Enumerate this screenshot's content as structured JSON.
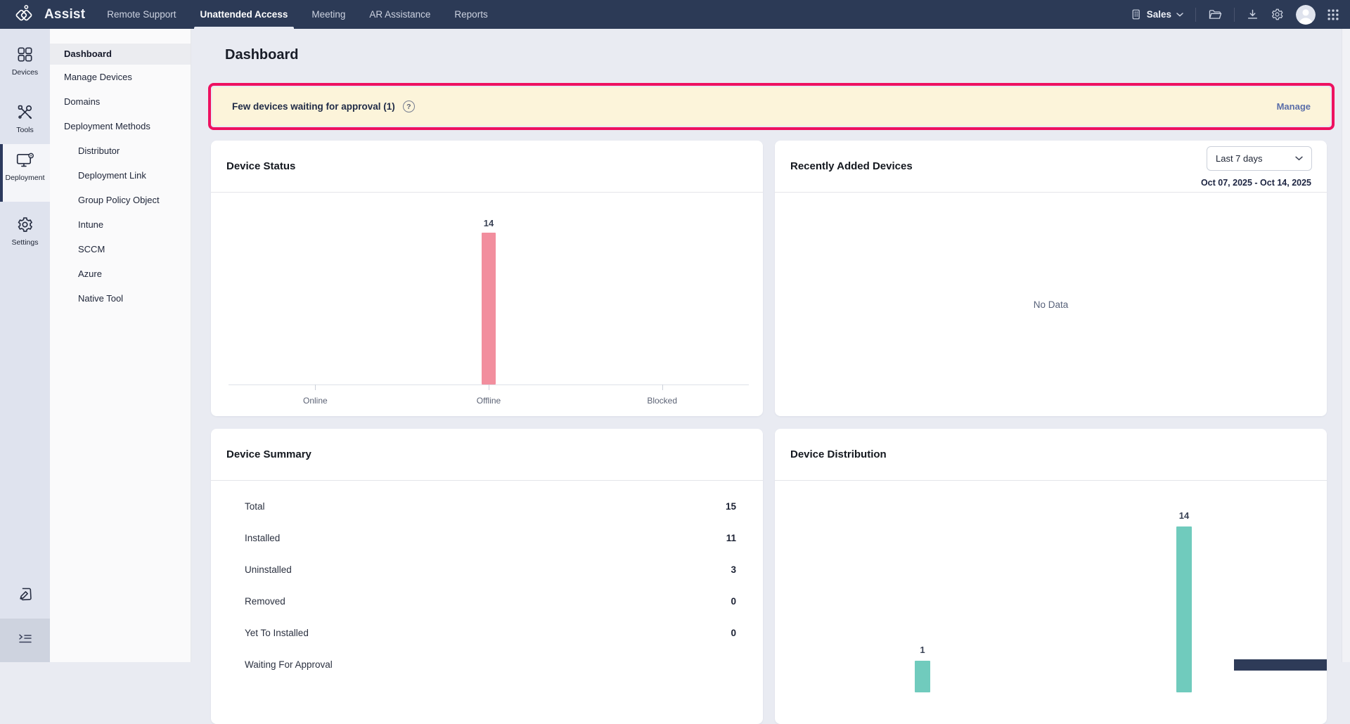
{
  "topnav": {
    "brand": "Assist",
    "tabs": [
      {
        "label": "Remote Support",
        "active": false
      },
      {
        "label": "Unattended Access",
        "active": true
      },
      {
        "label": "Meeting",
        "active": false
      },
      {
        "label": "AR Assistance",
        "active": false
      },
      {
        "label": "Reports",
        "active": false
      }
    ],
    "org": {
      "label": "Sales",
      "icon": "department-icon"
    },
    "right_icons": [
      "folder-icon",
      "download-icon",
      "gear-icon",
      "avatar",
      "apps-grid-icon"
    ]
  },
  "rail": {
    "items": [
      {
        "label": "Devices",
        "icon": "devices-grid-icon",
        "active": false
      },
      {
        "label": "Tools",
        "icon": "tools-icon",
        "active": false
      },
      {
        "label": "Deployment",
        "icon": "deployment-monitor-icon",
        "active": true
      },
      {
        "label": "Settings",
        "icon": "settings-gear-icon",
        "active": false
      }
    ],
    "bottom_icons": [
      "feedback-note-icon",
      "collapse-panel-icon"
    ]
  },
  "sidebar": {
    "items": [
      {
        "label": "Dashboard",
        "active": true,
        "indent": false
      },
      {
        "label": "Manage Devices",
        "active": false,
        "indent": false
      },
      {
        "label": "Domains",
        "active": false,
        "indent": false
      },
      {
        "label": "Deployment Methods",
        "active": false,
        "indent": false
      },
      {
        "label": "Distributor",
        "active": false,
        "indent": true
      },
      {
        "label": "Deployment Link",
        "active": false,
        "indent": true
      },
      {
        "label": "Group Policy Object",
        "active": false,
        "indent": true
      },
      {
        "label": "Intune",
        "active": false,
        "indent": true
      },
      {
        "label": "SCCM",
        "active": false,
        "indent": true
      },
      {
        "label": "Azure",
        "active": false,
        "indent": true
      },
      {
        "label": "Native Tool",
        "active": false,
        "indent": true
      }
    ]
  },
  "page": {
    "title": "Dashboard"
  },
  "banner": {
    "text": "Few devices waiting for approval (1)",
    "help_icon": "help-circle-icon",
    "action_label": "Manage",
    "bg_color": "#fcf4da",
    "highlight_border_color": "#ee1160"
  },
  "device_status": {
    "title": "Device Status"
  },
  "recently_added": {
    "title": "Recently Added Devices",
    "range_selector": "Last 7 days",
    "date_range": "Oct 07, 2025 - Oct 14, 2025",
    "empty_text": "No Data"
  },
  "device_summary": {
    "title": "Device Summary",
    "rows": [
      {
        "label": "Total",
        "value": "15"
      },
      {
        "label": "Installed",
        "value": "11"
      },
      {
        "label": "Uninstalled",
        "value": "3"
      },
      {
        "label": "Removed",
        "value": "0"
      },
      {
        "label": "Yet To Installed",
        "value": "0"
      },
      {
        "label": "Waiting For Approval",
        "value": "",
        "clipped": true
      }
    ]
  },
  "device_distribution": {
    "title": "Device Distribution"
  },
  "chart_data": [
    {
      "id": "device_status_chart",
      "type": "bar",
      "title": "Device Status",
      "categories": [
        "Online",
        "Offline",
        "Blocked"
      ],
      "values": [
        0,
        14,
        0
      ],
      "bar_color": "#f28e9e",
      "ylim": [
        0,
        14
      ],
      "grid": false,
      "data_labels": "shown only for non-zero bars",
      "legend": "none"
    },
    {
      "id": "device_distribution_chart",
      "type": "bar",
      "title": "Device Distribution",
      "categories": [
        "",
        ""
      ],
      "values": [
        1,
        14
      ],
      "bar_color": "#70cbbd",
      "ylim": [
        0,
        14
      ],
      "grid": false,
      "data_labels": "1 and 14 visible",
      "note": "chart is cut off by the viewport bottom; category labels and axis not visible",
      "legend": "none"
    }
  ]
}
